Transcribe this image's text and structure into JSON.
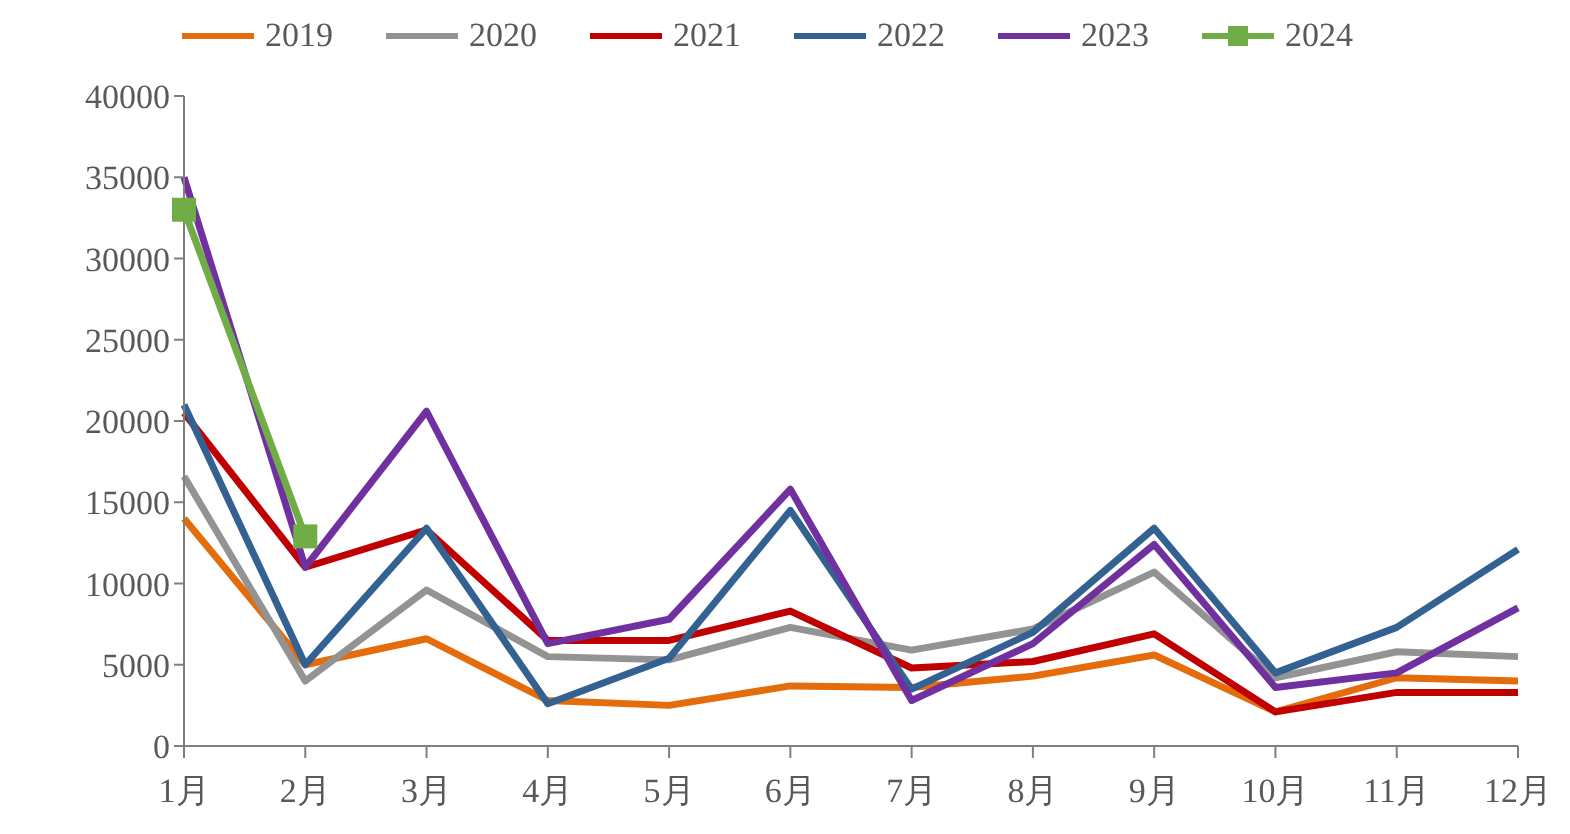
{
  "chart_data": {
    "type": "line",
    "categories": [
      "1月",
      "2月",
      "3月",
      "4月",
      "5月",
      "6月",
      "7月",
      "8月",
      "9月",
      "10月",
      "11月",
      "12月"
    ],
    "series": [
      {
        "name": "2019",
        "color": "#e46c0a",
        "values": [
          14000,
          5000,
          6600,
          2800,
          2500,
          3700,
          3600,
          4300,
          5600,
          2100,
          4200,
          4000
        ]
      },
      {
        "name": "2020",
        "color": "#939393",
        "values": [
          16600,
          4000,
          9600,
          5500,
          5300,
          7300,
          5900,
          7200,
          10700,
          4200,
          5800,
          5500
        ]
      },
      {
        "name": "2021",
        "color": "#c00000",
        "values": [
          20500,
          11000,
          13300,
          6500,
          6500,
          8300,
          4800,
          5200,
          6900,
          2100,
          3300,
          3300
        ]
      },
      {
        "name": "2022",
        "color": "#336192",
        "values": [
          21000,
          5000,
          13400,
          2600,
          5400,
          14500,
          3500,
          7000,
          13400,
          4500,
          7300,
          12100
        ]
      },
      {
        "name": "2023",
        "color": "#7030a0",
        "values": [
          35000,
          11000,
          20600,
          6300,
          7800,
          15800,
          2800,
          6300,
          12400,
          3600,
          4500,
          8500
        ]
      },
      {
        "name": "2024",
        "color": "#70ad47",
        "marker": "square",
        "values": [
          33000,
          12900,
          null,
          null,
          null,
          null,
          null,
          null,
          null,
          null,
          null,
          null
        ]
      }
    ],
    "ylim": [
      0,
      40000
    ],
    "yticks": [
      0,
      5000,
      10000,
      15000,
      20000,
      25000,
      30000,
      35000,
      40000
    ],
    "grid": false,
    "legend": "top",
    "marker": "none",
    "line_style": "solid"
  }
}
